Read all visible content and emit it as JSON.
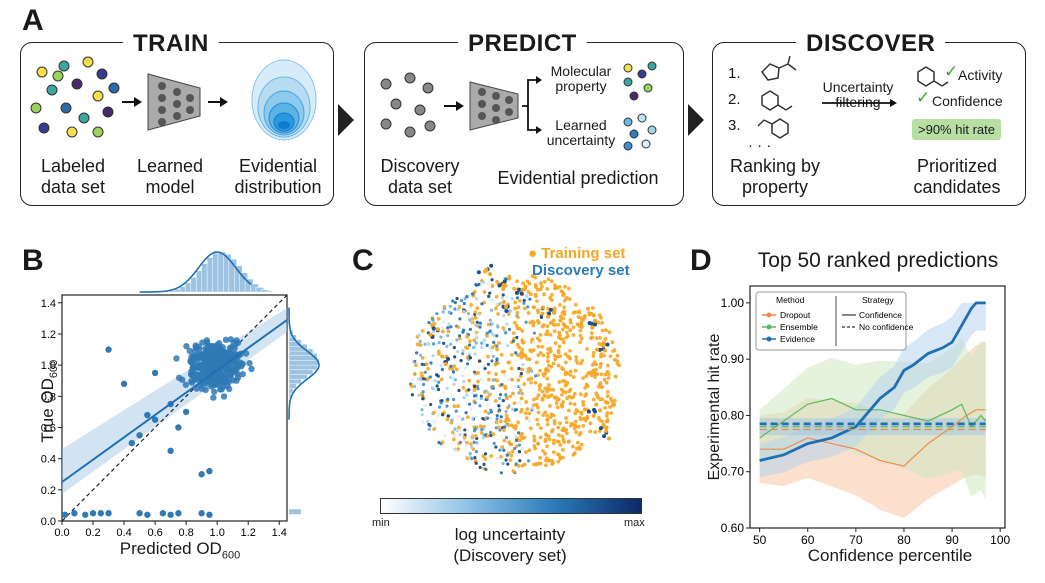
{
  "panel_a": {
    "letter": "A",
    "train": {
      "title": "TRAIN",
      "labels": [
        "Labeled\ndata set",
        "Learned\nmodel",
        "Evidential\ndistribution"
      ]
    },
    "predict": {
      "title": "PREDICT",
      "labels": [
        "Discovery\ndata set",
        "Evidential prediction"
      ],
      "outputs": [
        "Molecular\nproperty",
        "Learned\nuncertainty"
      ]
    },
    "discover": {
      "title": "DISCOVER",
      "ranks": [
        "1.",
        "2.",
        "3."
      ],
      "ellipsis": "· · ·",
      "filter": "Uncertainty\nfiltering",
      "checks": [
        "Activity",
        "Confidence"
      ],
      "checkmark": "✓",
      "hit_rate": ">90% hit rate",
      "labels": [
        "Ranking by\nproperty",
        "Prioritized\ncandidates"
      ]
    }
  },
  "panel_b": {
    "letter": "B",
    "xlabel": "Predicted OD",
    "ylabel": "True OD",
    "subscript": "600",
    "ticks": [
      "0.0",
      "0.2",
      "0.4",
      "0.6",
      "0.8",
      "1.0",
      "1.2",
      "1.4"
    ]
  },
  "panel_c": {
    "letter": "C",
    "legend": [
      "Training set",
      "Discovery set"
    ],
    "colorbar_min": "min",
    "colorbar_max": "max",
    "colorbar_label": "log uncertainty\n(Discovery set)",
    "colors": {
      "training": "#f5a623",
      "discovery": "#2b7bba"
    }
  },
  "panel_d": {
    "letter": "D",
    "legend_method_title": "Method",
    "legend_strategy_title": "Strategy",
    "strategies": [
      "Confidence",
      "No confidence"
    ],
    "chart_data": {
      "type": "line",
      "title": "Top 50 ranked predictions",
      "xlabel": "Confidence percentile",
      "ylabel": "Experimental hit rate",
      "xlim": [
        48,
        101
      ],
      "ylim": [
        0.6,
        1.03
      ],
      "xticks": [
        50,
        60,
        70,
        80,
        90,
        100
      ],
      "yticks": [
        0.6,
        0.7,
        0.8,
        0.9,
        1.0
      ],
      "series": [
        {
          "name": "Dropout",
          "strategy": "Confidence",
          "color": "#f08a4b",
          "x": [
            50,
            55,
            60,
            65,
            70,
            75,
            80,
            85,
            90,
            93,
            95,
            97
          ],
          "y": [
            0.74,
            0.74,
            0.76,
            0.75,
            0.74,
            0.72,
            0.71,
            0.75,
            0.78,
            0.8,
            0.81,
            0.81
          ]
        },
        {
          "name": "Ensemble",
          "strategy": "Confidence",
          "color": "#5cb85c",
          "x": [
            50,
            55,
            60,
            65,
            70,
            75,
            80,
            85,
            90,
            92,
            94,
            96,
            97
          ],
          "y": [
            0.76,
            0.79,
            0.82,
            0.83,
            0.81,
            0.81,
            0.8,
            0.79,
            0.81,
            0.82,
            0.78,
            0.8,
            0.79
          ]
        },
        {
          "name": "Evidence",
          "strategy": "Confidence",
          "color": "#1f6fb2",
          "x": [
            50,
            55,
            60,
            65,
            70,
            72,
            75,
            78,
            80,
            82,
            85,
            88,
            90,
            92,
            94,
            95,
            97
          ],
          "y": [
            0.72,
            0.73,
            0.75,
            0.76,
            0.78,
            0.8,
            0.83,
            0.85,
            0.88,
            0.89,
            0.91,
            0.92,
            0.93,
            0.96,
            0.99,
            1.0,
            1.0
          ]
        },
        {
          "name": "Evidence",
          "strategy": "No confidence",
          "color": "#1f6fb2",
          "x": [
            50,
            97
          ],
          "y": [
            0.785,
            0.785
          ]
        },
        {
          "name": "Dropout",
          "strategy": "No confidence",
          "color": "#f08a4b",
          "x": [
            50,
            97
          ],
          "y": [
            0.775,
            0.775
          ]
        },
        {
          "name": "Ensemble",
          "strategy": "No confidence",
          "color": "#5cb85c",
          "x": [
            50,
            97
          ],
          "y": [
            0.78,
            0.78
          ]
        }
      ]
    }
  }
}
